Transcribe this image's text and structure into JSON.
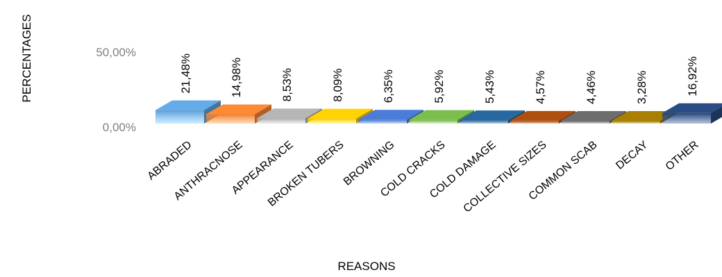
{
  "chart_data": {
    "type": "bar",
    "style": "3d",
    "title": "",
    "xlabel": "REASONS",
    "ylabel": "PERCENTAGES",
    "ylim": [
      0,
      50
    ],
    "yticks": [
      "0,00%",
      "50,00%"
    ],
    "grid": false,
    "legend": "none",
    "categories": [
      "ABRADED",
      "ANTHRACNOSE",
      "APPEARANCE",
      "BROKEN TUBERS",
      "BROWNING",
      "COLD CRACKS",
      "COLD DAMAGE",
      "COLLECTIVE SIZES",
      "COMMON SCAB",
      "DECAY",
      "OTHER"
    ],
    "values": [
      21.48,
      14.98,
      8.53,
      8.09,
      6.35,
      5.92,
      5.43,
      4.57,
      4.46,
      3.28,
      16.92
    ],
    "value_labels": [
      "21,48%",
      "14,98%",
      "8,53%",
      "8,09%",
      "6,35%",
      "5,92%",
      "5,43%",
      "4,57%",
      "4,46%",
      "3,28%",
      "16,92%"
    ],
    "colors": [
      "#5b9bd5",
      "#ed7d31",
      "#a5a5a5",
      "#ffc000",
      "#4472c4",
      "#70ad47",
      "#255e91",
      "#9e480e",
      "#636363",
      "#997300",
      "#264478"
    ]
  }
}
